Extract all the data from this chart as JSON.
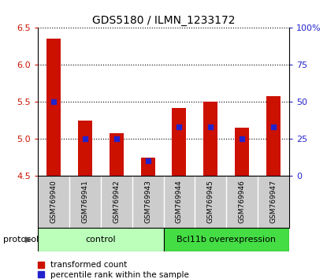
{
  "title": "GDS5180 / ILMN_1233172",
  "samples": [
    "GSM769940",
    "GSM769941",
    "GSM769942",
    "GSM769943",
    "GSM769944",
    "GSM769945",
    "GSM769946",
    "GSM769947"
  ],
  "transformed_counts": [
    6.35,
    5.25,
    5.08,
    4.75,
    5.42,
    5.5,
    5.15,
    5.58
  ],
  "percentile_ranks": [
    50,
    25,
    25,
    10,
    33,
    33,
    25,
    33
  ],
  "ylim_left": [
    4.5,
    6.5
  ],
  "ylim_right": [
    0,
    100
  ],
  "yticks_left": [
    4.5,
    5.0,
    5.5,
    6.0,
    6.5
  ],
  "yticks_right": [
    0,
    25,
    50,
    75,
    100
  ],
  "ytick_labels_right": [
    "0",
    "25",
    "50",
    "75",
    "100%"
  ],
  "bar_color": "#cc1100",
  "dot_color": "#2222cc",
  "bar_bottom": 4.5,
  "groups": [
    {
      "label": "control",
      "samples": [
        0,
        1,
        2,
        3
      ],
      "color": "#bbffbb"
    },
    {
      "label": "Bcl11b overexpression",
      "samples": [
        4,
        5,
        6,
        7
      ],
      "color": "#44dd44"
    }
  ],
  "protocol_label": "protocol",
  "legend_items": [
    {
      "color": "#cc1100",
      "label": "transformed count"
    },
    {
      "color": "#2222cc",
      "label": "percentile rank within the sample"
    }
  ],
  "background_color": "#ffffff",
  "bar_width": 0.45,
  "sample_box_color": "#cccccc",
  "grid_linestyle": "dotted"
}
